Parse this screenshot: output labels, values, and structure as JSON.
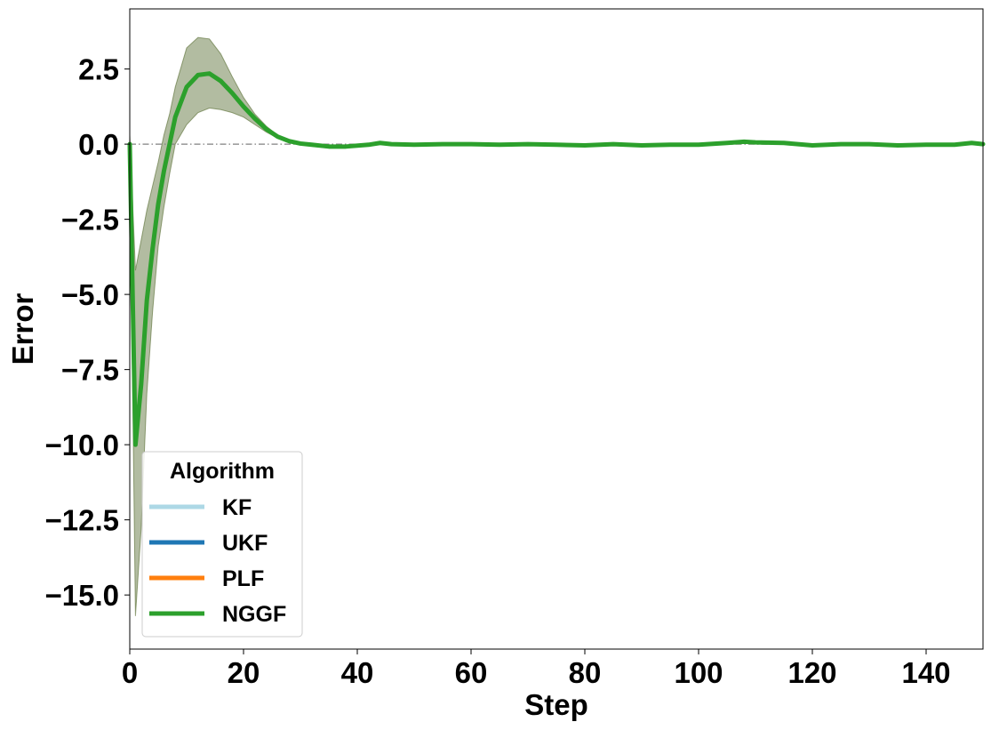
{
  "chart_data": {
    "type": "line",
    "title": "",
    "xlabel": "Step",
    "ylabel": "Error",
    "xlim": [
      0,
      150
    ],
    "ylim": [
      -16.8,
      4.5
    ],
    "xticks": [
      0,
      20,
      40,
      60,
      80,
      100,
      120,
      140
    ],
    "xtick_labels": [
      "0",
      "20",
      "40",
      "60",
      "80",
      "100",
      "120",
      "140"
    ],
    "yticks": [
      2.5,
      0.0,
      -2.5,
      -5.0,
      -7.5,
      -10.0,
      -12.5,
      -15.0
    ],
    "ytick_labels": [
      "2.5",
      "0.0",
      "−2.5",
      "−5.0",
      "−7.5",
      "−10.0",
      "−12.5",
      "−15.0"
    ],
    "grid": false,
    "reference_line": {
      "y": 0,
      "style": "dash-dot",
      "color": "#808080"
    },
    "legend": {
      "title": "Algorithm",
      "location": "lower-left"
    },
    "x": [
      0,
      1,
      2,
      3,
      4,
      5,
      6,
      7,
      8,
      10,
      12,
      14,
      16,
      18,
      20,
      22,
      24,
      26,
      28,
      30,
      32,
      35,
      38,
      42,
      44,
      46,
      50,
      55,
      60,
      65,
      70,
      75,
      80,
      85,
      90,
      95,
      100,
      105,
      108,
      110,
      115,
      120,
      125,
      130,
      135,
      140,
      145,
      148,
      150
    ],
    "series": [
      {
        "name": "KF",
        "color": "#add8e6",
        "values": [
          0,
          -10,
          -8,
          -5.2,
          -3.5,
          -2,
          -0.9,
          0,
          0.9,
          1.9,
          2.3,
          2.35,
          2.1,
          1.7,
          1.25,
          0.85,
          0.5,
          0.25,
          0.1,
          0.02,
          -0.02,
          -0.08,
          -0.08,
          -0.02,
          0.04,
          0,
          -0.02,
          0,
          0,
          -0.02,
          0,
          -0.02,
          -0.04,
          0,
          -0.04,
          -0.02,
          -0.02,
          0.04,
          0.08,
          0.06,
          0.04,
          -0.04,
          0,
          0,
          -0.04,
          -0.02,
          -0.02,
          0.04,
          0
        ]
      },
      {
        "name": "UKF",
        "color": "#1f77b4",
        "values": [
          0,
          -10,
          -8,
          -5.2,
          -3.5,
          -2,
          -0.9,
          0,
          0.9,
          1.9,
          2.3,
          2.35,
          2.1,
          1.7,
          1.25,
          0.85,
          0.5,
          0.25,
          0.1,
          0.02,
          -0.02,
          -0.08,
          -0.08,
          -0.02,
          0.04,
          0,
          -0.02,
          0,
          0,
          -0.02,
          0,
          -0.02,
          -0.04,
          0,
          -0.04,
          -0.02,
          -0.02,
          0.04,
          0.08,
          0.06,
          0.04,
          -0.04,
          0,
          0,
          -0.04,
          -0.02,
          -0.02,
          0.04,
          0
        ]
      },
      {
        "name": "PLF",
        "color": "#ff7f0e",
        "values": [
          0,
          -10,
          -8,
          -5.2,
          -3.5,
          -2,
          -0.9,
          0,
          0.9,
          1.9,
          2.3,
          2.35,
          2.1,
          1.7,
          1.25,
          0.85,
          0.5,
          0.25,
          0.1,
          0.02,
          -0.02,
          -0.08,
          -0.08,
          -0.02,
          0.04,
          0,
          -0.02,
          0,
          0,
          -0.02,
          0,
          -0.02,
          -0.04,
          0,
          -0.04,
          -0.02,
          -0.02,
          0.04,
          0.08,
          0.06,
          0.04,
          -0.04,
          0,
          0,
          -0.04,
          -0.02,
          -0.02,
          0.04,
          0
        ]
      },
      {
        "name": "NGGF",
        "color": "#2ca02c",
        "values": [
          0,
          -10,
          -8,
          -5.2,
          -3.5,
          -2,
          -0.9,
          0,
          0.9,
          1.9,
          2.3,
          2.35,
          2.1,
          1.7,
          1.25,
          0.85,
          0.5,
          0.25,
          0.1,
          0.02,
          -0.02,
          -0.08,
          -0.08,
          -0.02,
          0.04,
          0,
          -0.02,
          0,
          0,
          -0.02,
          0,
          -0.02,
          -0.04,
          0,
          -0.04,
          -0.02,
          -0.02,
          0.04,
          0.08,
          0.06,
          0.04,
          -0.04,
          0,
          0,
          -0.04,
          -0.02,
          -0.02,
          0.04,
          0
        ]
      }
    ],
    "band": {
      "color": "#556b2f",
      "upper": [
        0.3,
        -4.2,
        -3.2,
        -2.2,
        -1.4,
        -0.6,
        0.3,
        1.0,
        1.9,
        3.2,
        3.55,
        3.5,
        3.0,
        2.25,
        1.55,
        1.0,
        0.6,
        0.3,
        0.15,
        0.06,
        0.02,
        -0.04,
        -0.05,
        0.02,
        0.08,
        0.04,
        0.02,
        0.03,
        0.03,
        0.02,
        0.03,
        0.02,
        0,
        0.03,
        0,
        0.01,
        0.02,
        0.08,
        0.12,
        0.1,
        0.07,
        0,
        0.03,
        0.03,
        0,
        0.02,
        0.02,
        0.08,
        0.04
      ],
      "lower": [
        -0.3,
        -15.7,
        -12.8,
        -8.3,
        -5.6,
        -3.4,
        -2.1,
        -1.0,
        0,
        0.65,
        1.05,
        1.2,
        1.15,
        1.05,
        0.9,
        0.65,
        0.4,
        0.2,
        0.05,
        -0.02,
        -0.07,
        -0.13,
        -0.12,
        -0.06,
        0,
        -0.05,
        -0.06,
        -0.04,
        -0.04,
        -0.06,
        -0.04,
        -0.06,
        -0.08,
        -0.04,
        -0.08,
        -0.06,
        -0.06,
        0,
        0.04,
        0.02,
        0.01,
        -0.08,
        -0.04,
        -0.04,
        -0.08,
        -0.06,
        -0.06,
        0,
        -0.04
      ]
    }
  }
}
